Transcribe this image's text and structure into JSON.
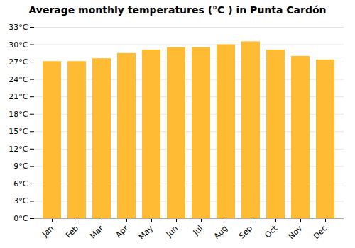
{
  "chart_data": {
    "type": "bar",
    "title": "Average monthly temperatures (°C ) in Punta Cardón",
    "categories": [
      "Jan",
      "Feb",
      "Mar",
      "Apr",
      "May",
      "Jun",
      "Jul",
      "Aug",
      "Sep",
      "Oct",
      "Nov",
      "Dec"
    ],
    "values": [
      27.1,
      27.1,
      27.6,
      28.5,
      29.1,
      29.5,
      29.5,
      30.0,
      30.5,
      29.1,
      28.0,
      27.4
    ],
    "color": "#FFBB33",
    "ylim": [
      0,
      33
    ],
    "yticks": [
      {
        "value": 0,
        "label": "0°C"
      },
      {
        "value": 3,
        "label": "3°C"
      },
      {
        "value": 6,
        "label": "6°C"
      },
      {
        "value": 9,
        "label": "9°C"
      },
      {
        "value": 12,
        "label": "12°C"
      },
      {
        "value": 15,
        "label": "15°C"
      },
      {
        "value": 18,
        "label": "18°C"
      },
      {
        "value": 21,
        "label": "21°C"
      },
      {
        "value": 24,
        "label": "24°C"
      },
      {
        "value": 27,
        "label": "27°C"
      },
      {
        "value": 30,
        "label": "30°C"
      },
      {
        "value": 33,
        "label": "33°C"
      }
    ],
    "grid": true
  }
}
